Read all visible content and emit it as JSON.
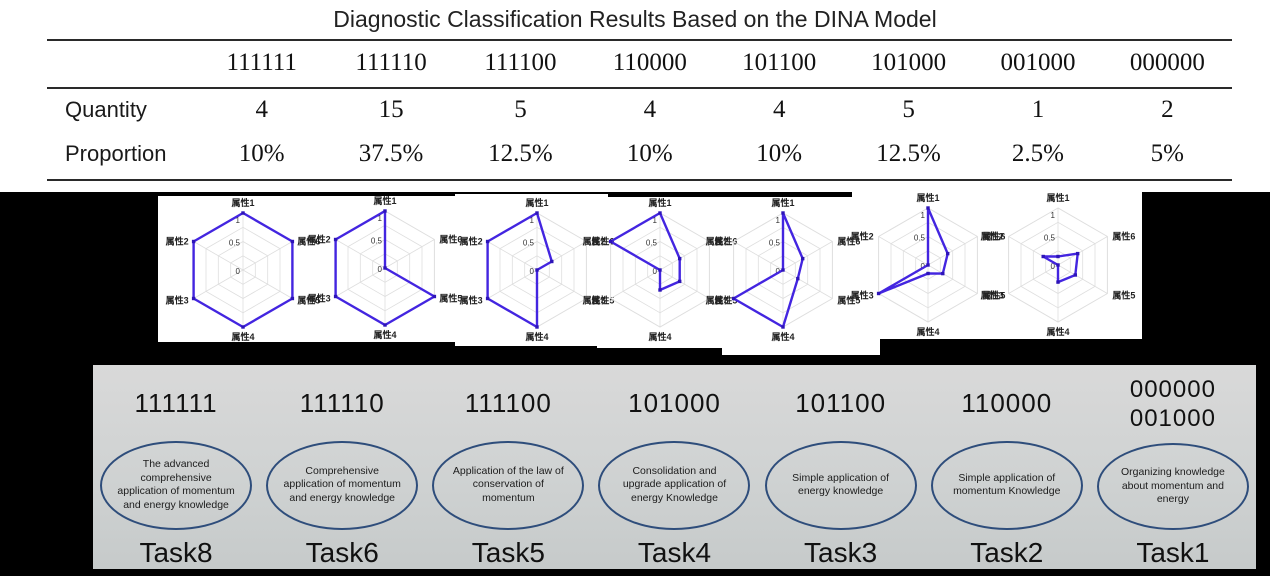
{
  "title": "Diagnostic Classification Results Based on the DINA Model",
  "table": {
    "row_labels": {
      "quantity": "Quantity",
      "proportion": "Proportion"
    },
    "columns": [
      {
        "code": "111111",
        "quantity": "4",
        "proportion": "10%"
      },
      {
        "code": "111110",
        "quantity": "15",
        "proportion": "37.5%"
      },
      {
        "code": "111100",
        "quantity": "5",
        "proportion": "12.5%"
      },
      {
        "code": "110000",
        "quantity": "4",
        "proportion": "10%"
      },
      {
        "code": "101100",
        "quantity": "4",
        "proportion": "10%"
      },
      {
        "code": "101000",
        "quantity": "5",
        "proportion": "12.5%"
      },
      {
        "code": "001000",
        "quantity": "1",
        "proportion": "2.5%"
      },
      {
        "code": "000000",
        "quantity": "2",
        "proportion": "5%"
      }
    ]
  },
  "chart_data": {
    "type": "radar",
    "axes": [
      "属性1",
      "属性2",
      "属性3",
      "属性4",
      "属性5",
      "属性6"
    ],
    "ticks": [
      "1",
      "0.5",
      "0"
    ],
    "range": [
      0,
      1
    ],
    "grid": true,
    "legend_position": "none",
    "series": [
      {
        "name": "111111",
        "values": [
          1,
          1,
          1,
          1,
          1,
          1
        ]
      },
      {
        "name": "111110",
        "values": [
          1,
          1,
          1,
          1,
          1,
          0
        ]
      },
      {
        "name": "111100",
        "values": [
          1,
          1,
          1,
          1,
          0,
          0.3
        ]
      },
      {
        "name": "110000",
        "values": [
          1,
          1,
          0,
          0.35,
          0.4,
          0.4
        ]
      },
      {
        "name": "101100",
        "values": [
          1,
          0,
          1,
          1,
          0.3,
          0.4
        ]
      },
      {
        "name": "101000",
        "values": [
          1,
          0,
          1,
          0.15,
          0.3,
          0.4
        ]
      },
      {
        "name": "000000/001000",
        "values": [
          0.15,
          0.3,
          0,
          0.3,
          0.35,
          0.4
        ]
      }
    ]
  },
  "tasks": {
    "cells": [
      {
        "codes": [
          "111111"
        ],
        "description": "The advanced comprehensive application of momentum and energy knowledge",
        "task": "Task8"
      },
      {
        "codes": [
          "111110"
        ],
        "description": "Comprehensive application of momentum and energy knowledge",
        "task": "Task6"
      },
      {
        "codes": [
          "111100"
        ],
        "description": "Application of the law of conservation of momentum",
        "task": "Task5"
      },
      {
        "codes": [
          "101000"
        ],
        "description": "Consolidation and upgrade application of energy Knowledge",
        "task": "Task4"
      },
      {
        "codes": [
          "101100"
        ],
        "description": "Simple application of energy knowledge",
        "task": "Task3"
      },
      {
        "codes": [
          "110000"
        ],
        "description": "Simple application of momentum Knowledge",
        "task": "Task2"
      },
      {
        "codes": [
          "000000",
          "001000"
        ],
        "description": "Organizing knowledge about momentum and energy",
        "task": "Task1"
      }
    ]
  },
  "colors": {
    "radar_line": "#4325e0",
    "radar_marker": "#2d14b8",
    "radar_grid": "#dedede",
    "ellipse_border": "#2e4d7b",
    "band_background": "#000000",
    "task_panel_gray": "#d0d3d3"
  }
}
